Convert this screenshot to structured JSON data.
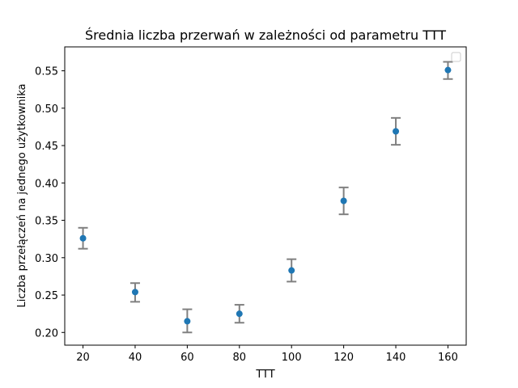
{
  "chart_data": {
    "type": "scatter",
    "title": "Średnia liczba przerwań w zależności od parametru TTT",
    "xlabel": "TTT",
    "ylabel": "Liczba przełączeń na jednego użytkownika",
    "xlim": [
      13,
      167
    ],
    "ylim": [
      0.183,
      0.582
    ],
    "xticks": [
      20,
      40,
      60,
      80,
      100,
      120,
      140,
      160
    ],
    "yticks": [
      0.2,
      0.25,
      0.3,
      0.35,
      0.4,
      0.45,
      0.5,
      0.55
    ],
    "ytick_labels": [
      "0.20",
      "0.25",
      "0.30",
      "0.35",
      "0.40",
      "0.45",
      "0.50",
      "0.55"
    ],
    "series": [
      {
        "x": [
          20,
          40,
          60,
          80,
          100,
          120,
          140,
          160
        ],
        "y": [
          0.326,
          0.254,
          0.215,
          0.225,
          0.283,
          0.376,
          0.469,
          0.551
        ],
        "err_low": [
          0.312,
          0.241,
          0.2,
          0.213,
          0.268,
          0.358,
          0.451,
          0.539
        ],
        "err_high": [
          0.34,
          0.266,
          0.231,
          0.237,
          0.298,
          0.394,
          0.487,
          0.562
        ],
        "color": "#1f77b4",
        "error_color": "#808080"
      }
    ],
    "legend": {
      "position": "top-right",
      "entries": []
    },
    "grid": false
  }
}
